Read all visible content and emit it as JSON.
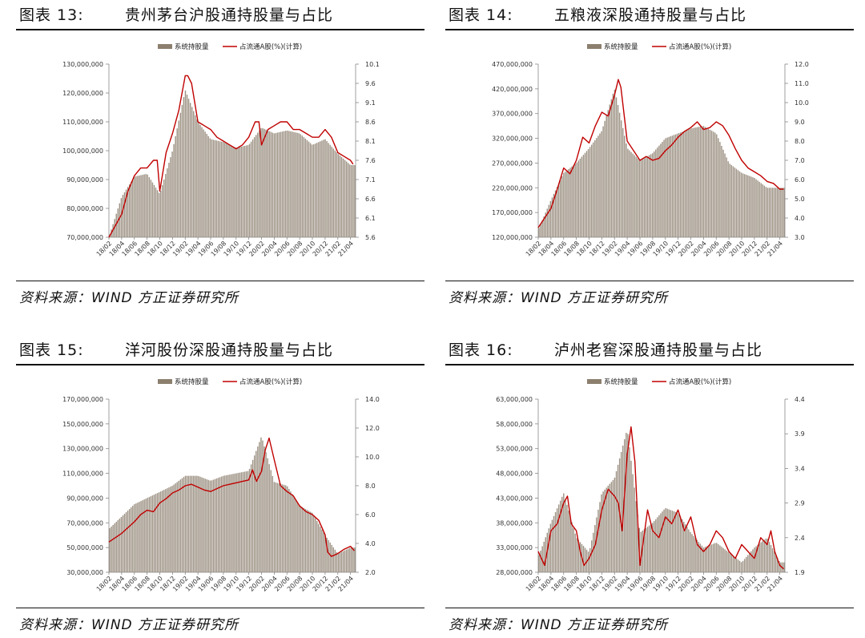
{
  "panels": [
    {
      "fig": "图表 13:",
      "title": "贵州茅台沪股通持股量与占比",
      "source": "资料来源：WIND 方正证券研究所"
    },
    {
      "fig": "图表 14:",
      "title": "五粮液深股通持股量与占比",
      "source": "资料来源：WIND 方正证券研究所"
    },
    {
      "fig": "图表 15:",
      "title": "洋河股份深股通持股量与占比",
      "source": "资料来源：WIND 方正证券研究所"
    },
    {
      "fig": "图表 16:",
      "title": "泸州老窖深股通持股量与占比",
      "source": "资料来源：WIND 方正证券研究所"
    }
  ],
  "colors": {
    "bar": "#8c7f6e",
    "line": "#c00000"
  },
  "chart_data": [
    {
      "type": "bar",
      "title": "贵州茅台沪股通持股量与占比",
      "legend": [
        "系统持股量",
        "占流通A股(%)(计算)"
      ],
      "legend_position": "top",
      "categories": [
        "18/02",
        "18/04",
        "18/06",
        "18/08",
        "18/10",
        "18/12",
        "19/02",
        "19/04",
        "19/06",
        "19/08",
        "19/10",
        "19/12",
        "20/02",
        "20/04",
        "20/06",
        "20/08",
        "20/10",
        "20/12",
        "21/02",
        "21/04"
      ],
      "y_left": {
        "min": 70000000,
        "max": 130000000,
        "ticks": [
          "70,000,000",
          "80,000,000",
          "90,000,000",
          "100,000,000",
          "110,000,000",
          "120,000,000",
          "130,000,000"
        ]
      },
      "y_right": {
        "min": 5.6,
        "max": 10.1,
        "ticks": [
          "5.6",
          "6.1",
          "6.6",
          "7.1",
          "7.6",
          "8.1",
          "8.6",
          "9.1",
          "9.6",
          "10.1"
        ]
      },
      "series": [
        {
          "name": "系统持股量",
          "kind": "bar",
          "x": [
            0,
            1,
            2,
            3,
            4,
            5,
            6,
            7,
            8,
            9,
            10,
            11,
            12,
            13,
            14,
            15,
            16,
            17,
            18,
            19
          ],
          "values": [
            70000000,
            84000000,
            91000000,
            92000000,
            85000000,
            100000000,
            121000000,
            110000000,
            104000000,
            103000000,
            101000000,
            102000000,
            108000000,
            106000000,
            107000000,
            106000000,
            102000000,
            104000000,
            99000000,
            95000000
          ]
        },
        {
          "name": "占流通A股(%)(计算)",
          "kind": "line",
          "x": [
            0,
            1,
            1.5,
            2,
            2.5,
            3,
            3.5,
            3.8,
            4,
            4.5,
            5,
            5.5,
            6,
            6.2,
            6.5,
            7,
            7.5,
            8,
            8.5,
            9,
            9.5,
            10,
            10.5,
            11,
            11.5,
            11.8,
            12,
            12.5,
            13,
            13.5,
            14,
            14.5,
            15,
            15.5,
            16,
            16.5,
            17,
            17.5,
            18,
            18.5,
            19,
            19.2
          ],
          "values": [
            5.6,
            6.2,
            6.8,
            7.2,
            7.4,
            7.4,
            7.6,
            7.6,
            6.8,
            7.8,
            8.3,
            8.9,
            9.8,
            9.8,
            9.6,
            8.6,
            8.5,
            8.4,
            8.2,
            8.1,
            8.0,
            7.9,
            8.0,
            8.2,
            8.6,
            8.6,
            8.0,
            8.4,
            8.5,
            8.6,
            8.6,
            8.4,
            8.4,
            8.3,
            8.2,
            8.2,
            8.4,
            8.2,
            7.8,
            7.7,
            7.6,
            7.5
          ]
        }
      ]
    },
    {
      "type": "bar",
      "title": "五粮液深股通持股量与占比",
      "legend": [
        "系统持股量",
        "占流通A股(%)(计算)"
      ],
      "legend_position": "top",
      "categories": [
        "18/02",
        "18/04",
        "18/06",
        "18/08",
        "18/10",
        "18/12",
        "19/02",
        "19/04",
        "19/06",
        "19/08",
        "19/10",
        "19/12",
        "20/02",
        "20/04",
        "20/06",
        "20/08",
        "20/10",
        "20/12",
        "21/02",
        "21/04"
      ],
      "y_left": {
        "min": 120000000,
        "max": 470000000,
        "ticks": [
          "120,000,000",
          "170,000,000",
          "220,000,000",
          "270,000,000",
          "320,000,000",
          "370,000,000",
          "420,000,000",
          "470,000,000"
        ]
      },
      "y_right": {
        "min": 3.0,
        "max": 12.0,
        "ticks": [
          "3.0",
          "4.0",
          "5.0",
          "6.0",
          "7.0",
          "8.0",
          "9.0",
          "10.0",
          "11.0",
          "12.0"
        ]
      },
      "series": [
        {
          "name": "系统持股量",
          "kind": "bar",
          "x": [
            0,
            1,
            2,
            3,
            4,
            5,
            6,
            7,
            8,
            9,
            10,
            11,
            12,
            13,
            14,
            15,
            16,
            17,
            18,
            19
          ],
          "values": [
            135000000,
            195000000,
            250000000,
            270000000,
            300000000,
            335000000,
            420000000,
            300000000,
            275000000,
            290000000,
            320000000,
            330000000,
            340000000,
            345000000,
            330000000,
            270000000,
            250000000,
            240000000,
            220000000,
            220000000
          ]
        },
        {
          "name": "占流通A股(%)(计算)",
          "kind": "line",
          "x": [
            0,
            1,
            1.5,
            2,
            2.5,
            3,
            3.5,
            4,
            4.5,
            5,
            5.5,
            6,
            6.3,
            6.5,
            7,
            7.5,
            8,
            8.5,
            9,
            9.5,
            10,
            10.5,
            11,
            11.5,
            12,
            12.5,
            13,
            13.5,
            14,
            14.5,
            15,
            15.5,
            16,
            16.5,
            17,
            17.5,
            18,
            18.5,
            19,
            19.3
          ],
          "values": [
            3.5,
            4.5,
            5.5,
            6.6,
            6.3,
            7.0,
            8.2,
            7.9,
            8.8,
            9.5,
            9.3,
            10.4,
            11.2,
            10.8,
            8.0,
            7.5,
            7.0,
            7.2,
            7.0,
            7.1,
            7.5,
            7.8,
            8.2,
            8.5,
            8.7,
            9.0,
            8.6,
            8.7,
            9.0,
            8.8,
            8.3,
            7.6,
            7.0,
            6.6,
            6.4,
            6.2,
            5.9,
            5.8,
            5.5,
            5.5
          ]
        }
      ]
    },
    {
      "type": "bar",
      "title": "洋河股份深股通持股量与占比",
      "legend": [
        "系统持股量",
        "占流通A股(%)(计算)"
      ],
      "legend_position": "top",
      "categories": [
        "18/02",
        "18/04",
        "18/06",
        "18/08",
        "18/10",
        "18/12",
        "19/02",
        "19/04",
        "19/06",
        "19/08",
        "19/10",
        "19/12",
        "20/02",
        "20/04",
        "20/06",
        "20/08",
        "20/10",
        "20/12",
        "21/02",
        "21/04"
      ],
      "y_left": {
        "min": 30000000,
        "max": 170000000,
        "ticks": [
          "30,000,000",
          "50,000,000",
          "70,000,000",
          "90,000,000",
          "110,000,000",
          "130,000,000",
          "150,000,000",
          "170,000,000"
        ]
      },
      "y_right": {
        "min": 2.0,
        "max": 14.0,
        "ticks": [
          "2.0",
          "4.0",
          "6.0",
          "8.0",
          "10.0",
          "12.0",
          "14.0"
        ]
      },
      "series": [
        {
          "name": "系统持股量",
          "kind": "bar",
          "x": [
            0,
            1,
            2,
            3,
            4,
            5,
            6,
            7,
            8,
            9,
            10,
            11,
            12,
            13,
            14,
            15,
            16,
            17,
            18,
            19
          ],
          "values": [
            65000000,
            75000000,
            85000000,
            90000000,
            95000000,
            100000000,
            108000000,
            108000000,
            104000000,
            108000000,
            110000000,
            112000000,
            140000000,
            103000000,
            100000000,
            84000000,
            78000000,
            60000000,
            45000000,
            50000000
          ]
        },
        {
          "name": "占流通A股(%)(计算)",
          "kind": "line",
          "x": [
            0,
            1,
            2,
            2.5,
            3,
            3.5,
            4,
            4.5,
            5,
            5.5,
            6,
            6.5,
            7,
            7.5,
            8,
            8.5,
            9,
            9.5,
            10,
            10.5,
            11,
            11.3,
            11.6,
            12,
            12.3,
            12.6,
            13,
            13.5,
            14,
            14.5,
            15,
            15.5,
            16,
            16.5,
            17,
            17.2,
            17.5,
            18,
            18.5,
            19,
            19.3
          ],
          "values": [
            4.1,
            4.7,
            5.5,
            6.0,
            6.3,
            6.2,
            6.8,
            7.1,
            7.5,
            7.7,
            8.0,
            8.1,
            7.9,
            7.7,
            7.6,
            7.8,
            8.0,
            8.1,
            8.2,
            8.3,
            8.4,
            9.1,
            8.3,
            9.0,
            10.5,
            11.3,
            9.8,
            8.0,
            7.6,
            7.3,
            6.6,
            6.2,
            6.0,
            5.6,
            4.6,
            3.4,
            3.1,
            3.3,
            3.6,
            3.8,
            3.5
          ]
        }
      ]
    },
    {
      "type": "bar",
      "title": "泸州老窖深股通持股量与占比",
      "legend": [
        "系统持股量",
        "占流通A股(%)(计算)"
      ],
      "legend_position": "top",
      "categories": [
        "18/02",
        "18/04",
        "18/06",
        "18/08",
        "18/10",
        "18/12",
        "19/02",
        "19/04",
        "19/06",
        "19/08",
        "19/10",
        "19/12",
        "20/02",
        "20/04",
        "20/06",
        "20/08",
        "20/10",
        "20/12",
        "21/02",
        "21/04"
      ],
      "y_left": {
        "min": 28000000,
        "max": 63000000,
        "ticks": [
          "28,000,000",
          "33,000,000",
          "38,000,000",
          "43,000,000",
          "48,000,000",
          "53,000,000",
          "58,000,000",
          "63,000,000"
        ]
      },
      "y_right": {
        "min": 1.9,
        "max": 4.4,
        "ticks": [
          "1.9",
          "2.4",
          "2.9",
          "3.4",
          "3.9",
          "4.4"
        ]
      },
      "series": [
        {
          "name": "系统持股量",
          "kind": "bar",
          "x": [
            0,
            1,
            2,
            3,
            4,
            5,
            6,
            7,
            8,
            9,
            10,
            11,
            12,
            13,
            14,
            15,
            16,
            17,
            18,
            19
          ],
          "values": [
            31000000,
            38000000,
            44000000,
            35000000,
            32000000,
            44000000,
            47000000,
            57000000,
            36000000,
            38000000,
            41000000,
            40000000,
            36000000,
            33000000,
            34000000,
            32000000,
            30000000,
            33000000,
            35000000,
            30000000
          ]
        },
        {
          "name": "占流通A股(%)(计算)",
          "kind": "line",
          "x": [
            0,
            0.5,
            1,
            1.5,
            2,
            2.3,
            2.6,
            3,
            3.3,
            3.6,
            4,
            4.5,
            5,
            5.5,
            6,
            6.3,
            6.6,
            7,
            7.3,
            7.6,
            8,
            8.3,
            8.6,
            9,
            9.5,
            10,
            10.5,
            11,
            11.5,
            12,
            12.5,
            13,
            13.5,
            14,
            14.5,
            15,
            15.5,
            16,
            16.5,
            17,
            17.5,
            18,
            18.3,
            18.6,
            19,
            19.3
          ],
          "values": [
            2.2,
            2.0,
            2.5,
            2.6,
            2.9,
            3.0,
            2.6,
            2.5,
            2.2,
            2.0,
            2.1,
            2.3,
            2.8,
            3.1,
            3.0,
            2.9,
            2.5,
            3.6,
            4.0,
            3.5,
            2.0,
            2.4,
            2.8,
            2.5,
            2.4,
            2.7,
            2.6,
            2.8,
            2.5,
            2.7,
            2.3,
            2.2,
            2.3,
            2.5,
            2.4,
            2.2,
            2.1,
            2.3,
            2.2,
            2.1,
            2.4,
            2.3,
            2.5,
            2.2,
            2.0,
            1.95
          ]
        }
      ]
    }
  ]
}
